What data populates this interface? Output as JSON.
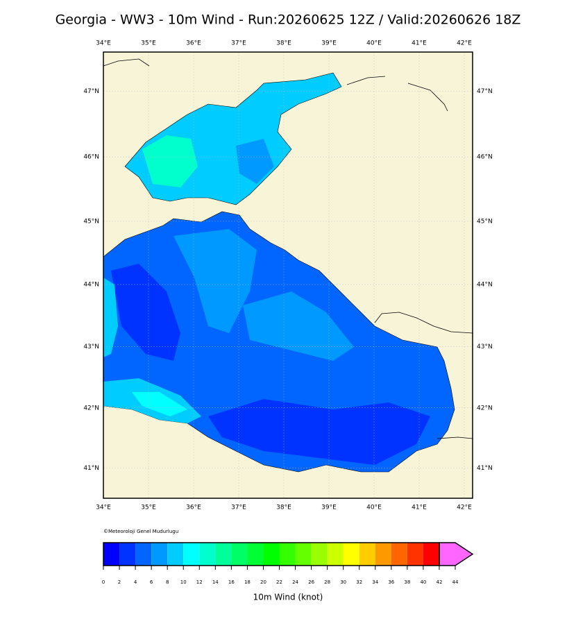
{
  "title": "Georgia - WW3 - 10m Wind - Run:20260625 12Z / Valid:20260626 18Z",
  "map": {
    "longitudes": [
      {
        "value": 34,
        "label": "34°E"
      },
      {
        "value": 35,
        "label": "35°E"
      },
      {
        "value": 36,
        "label": "36°E"
      },
      {
        "value": 37,
        "label": "37°E"
      },
      {
        "value": 38,
        "label": "38°E"
      },
      {
        "value": 39,
        "label": "39°E"
      },
      {
        "value": 40,
        "label": "40°E"
      },
      {
        "value": 41,
        "label": "41°E"
      },
      {
        "value": 42,
        "label": "42°E"
      }
    ],
    "latitudes": [
      {
        "value": 47,
        "label": "47°N"
      },
      {
        "value": 46,
        "label": "46°N"
      },
      {
        "value": 45,
        "label": "45°N"
      },
      {
        "value": 44,
        "label": "44°N"
      },
      {
        "value": 43,
        "label": "43°N"
      },
      {
        "value": 42,
        "label": "42°N"
      },
      {
        "value": 41,
        "label": "41°N"
      }
    ],
    "grid": true
  },
  "copyright": "©Meteoroloji Genel Mudurlugu",
  "colorbar": {
    "label": "10m Wind (knot)",
    "ticks": [
      0,
      2,
      4,
      6,
      8,
      10,
      12,
      14,
      16,
      18,
      20,
      22,
      24,
      26,
      28,
      30,
      32,
      34,
      36,
      38,
      40,
      42,
      44
    ],
    "colors": [
      "#0000ff",
      "#0033ff",
      "#0066ff",
      "#0099ff",
      "#00ccff",
      "#00ffff",
      "#00ffcc",
      "#00ff99",
      "#00ff66",
      "#00ff33",
      "#00ff00",
      "#33ff00",
      "#66ff00",
      "#99ff00",
      "#ccff00",
      "#ffff00",
      "#ffcc00",
      "#ff9900",
      "#ff6600",
      "#ff3300",
      "#ff0000",
      "#ff66ff"
    ]
  }
}
